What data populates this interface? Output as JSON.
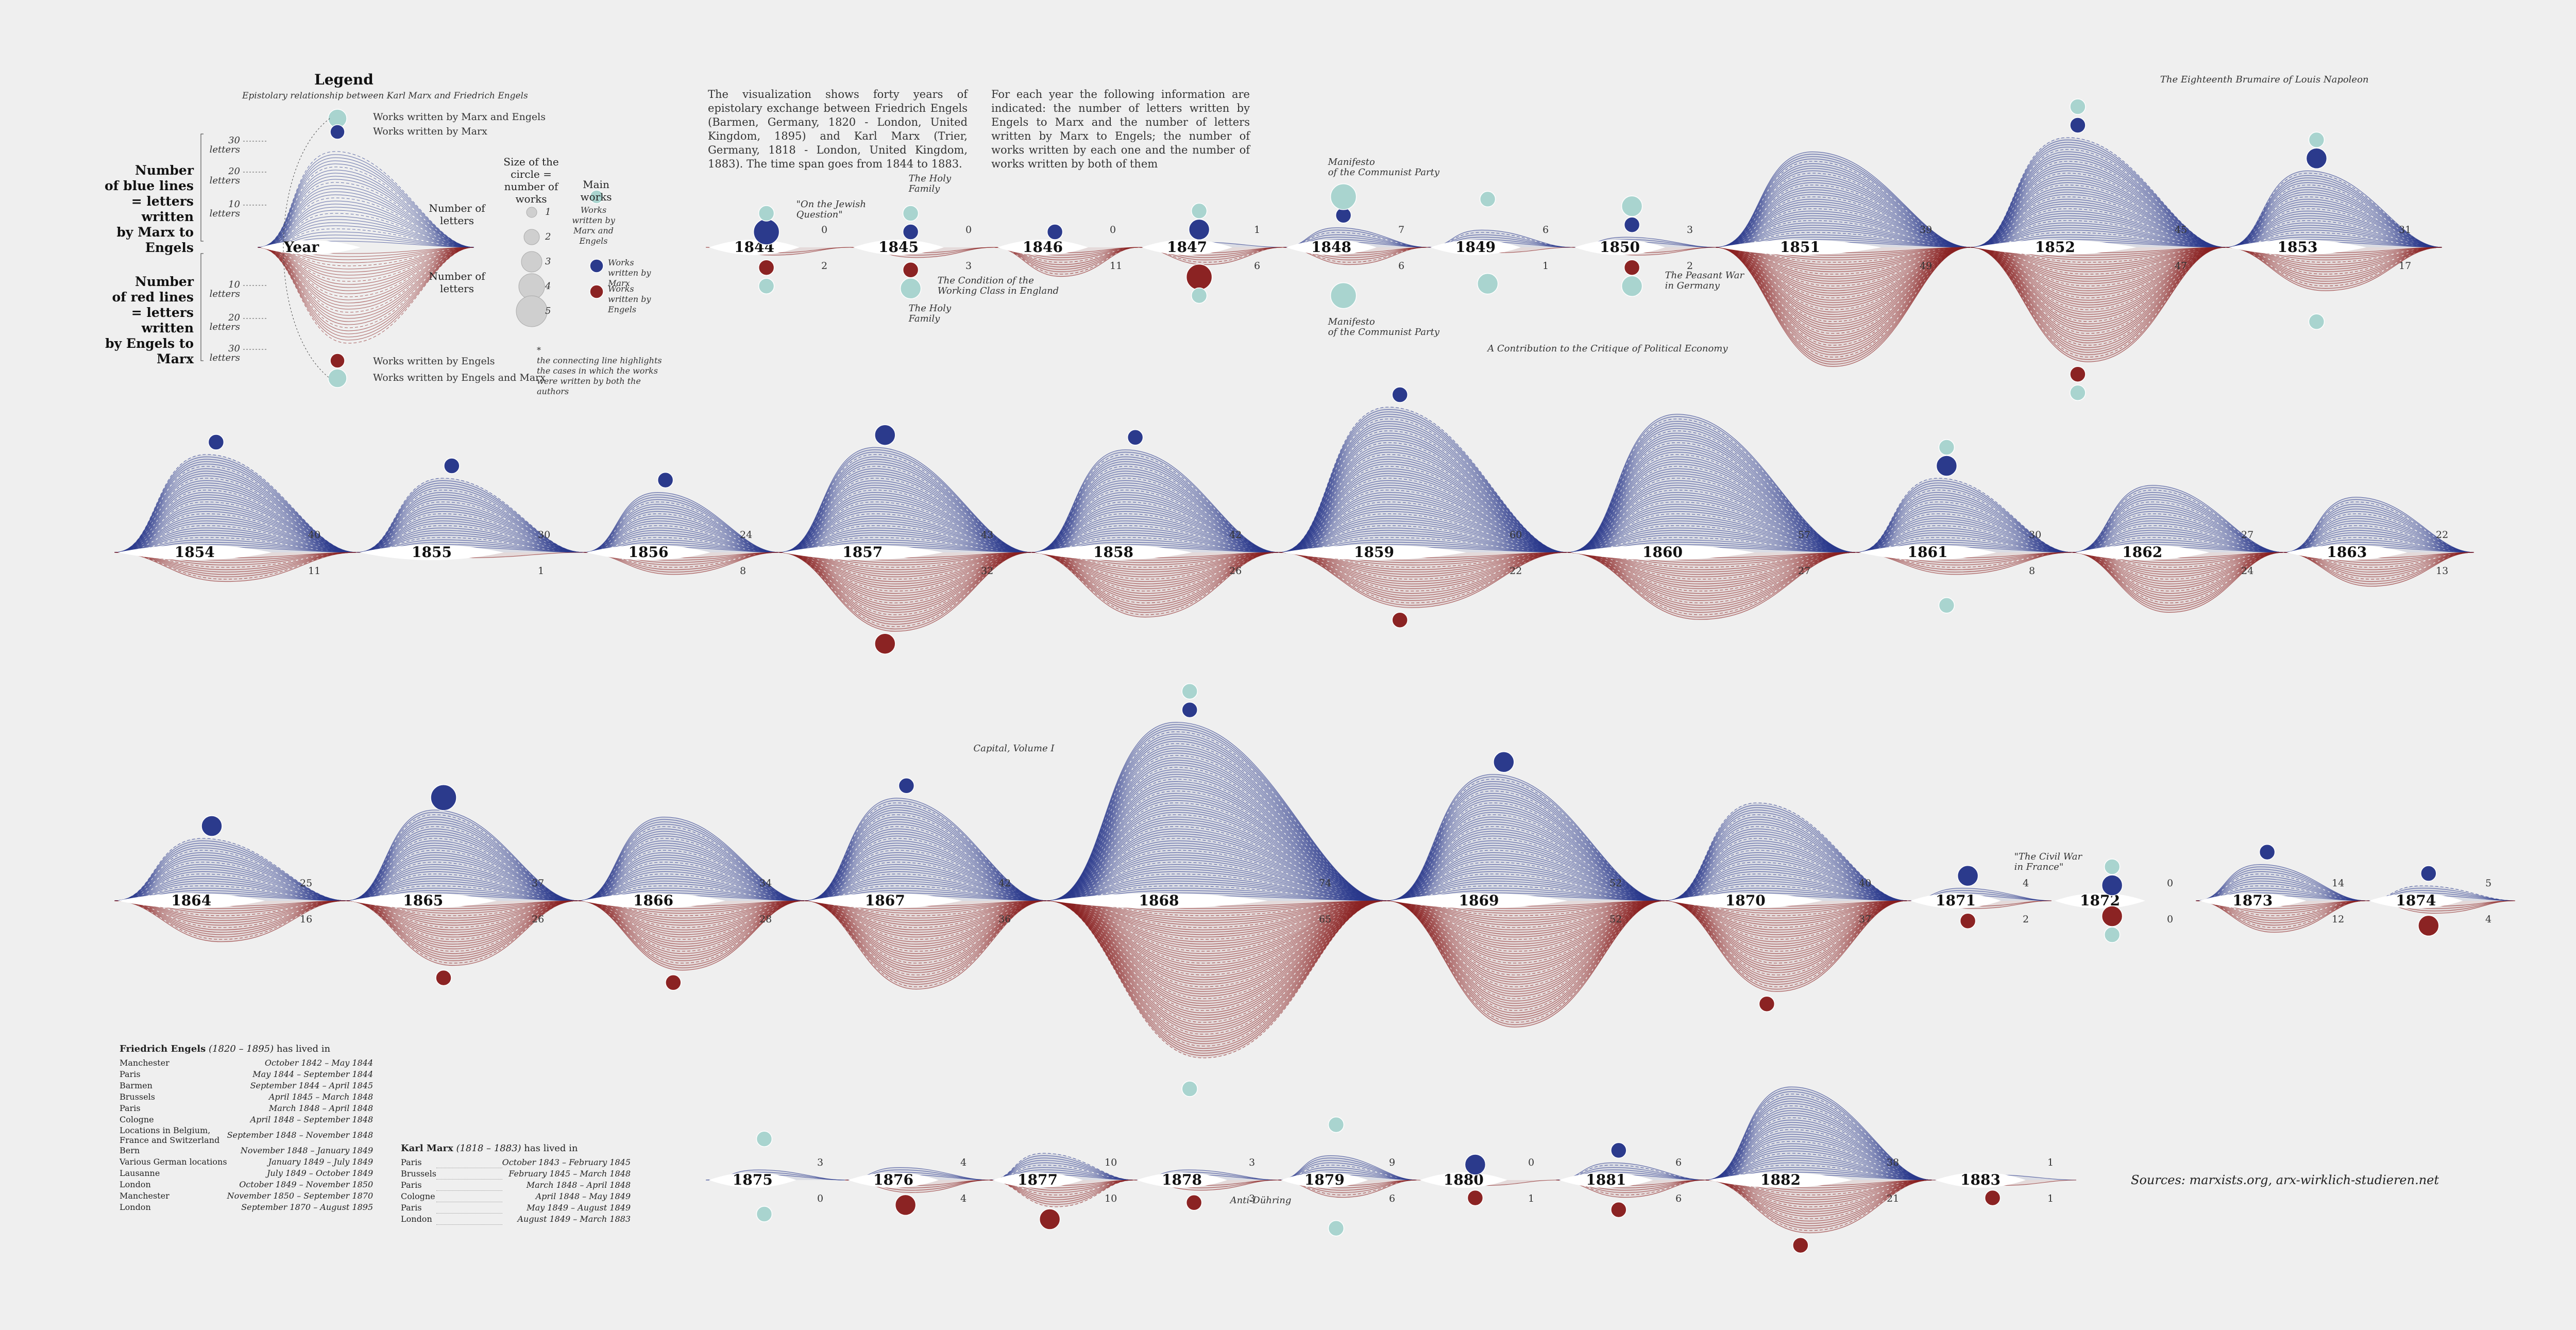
{
  "legend": {
    "title": "Legend",
    "subtitle": "Epistolary relationship between Karl Marx and Friedrich Engels",
    "blue_label": [
      "Number",
      "of blue lines",
      "= letters written",
      "by Marx to Engels"
    ],
    "red_label": [
      "Number",
      "of red lines",
      "= letters written",
      "by Engels to Marx"
    ],
    "year_label": "Year",
    "number_letters_top": "Number of letters",
    "number_letters_bottom": "Number of letters",
    "ticks": [
      "30 letters",
      "20 letters",
      "10 letters",
      "10 letters",
      "20 letters",
      "30 letters"
    ],
    "works_both_top": "Works written by Marx and Engels",
    "works_marx": "Works written by Marx",
    "works_engels": "Works written by Engels",
    "works_both_bottom": "Works written by Engels and Marx",
    "size_label": "Size of the circle = number of works",
    "main_works_label": "Main works",
    "mw_both": "Works written by Marx and Engels",
    "mw_marx": "Works written by Marx",
    "mw_engels": "Works written by Engels",
    "sizes": [
      "1",
      "2",
      "3",
      "4",
      "5"
    ],
    "connecting_note": "the connecting line highlights the cases in which the works were written by both the authors",
    "star": "*"
  },
  "intro": {
    "left": "The visualization shows forty years of epistolary exchange between Friedrich Engels (Barmen, Germany, 1820 - London, United Kingdom, 1895) and Karl Marx (Trier, Germany, 1818 - London, United Kingdom, 1883). The time span goes from 1844 to 1883.",
    "right": "For each year the following information are indicated: the number of letters written by Engels to Marx and the number of letters written by Marx to Engels; the number of works written by each one and the number of works written by both of them"
  },
  "sources": "Sources: marxists.org, arx-wirklich-studieren.net",
  "engels_residence": {
    "name": "Friedrich Engels",
    "dates": "(1820 – 1895)",
    "suffix": "has lived in",
    "rows": [
      [
        "Manchester",
        "October 1842 – May 1844"
      ],
      [
        "Paris",
        "May 1844 – September 1844"
      ],
      [
        "Barmen",
        "September 1844 – April 1845"
      ],
      [
        "Brussels",
        "April 1845 – March 1848"
      ],
      [
        "Paris",
        "March 1848 – April 1848"
      ],
      [
        "Cologne",
        "April 1848 – September 1848"
      ],
      [
        "Locations in Belgium, France and Switzerland",
        "September 1848 – November 1848"
      ],
      [
        "Bern",
        "November 1848 – January 1849"
      ],
      [
        "Various German locations",
        "January 1849 – July 1849"
      ],
      [
        "Lausanne",
        "July 1849 – October 1849"
      ],
      [
        "London",
        "October 1849 – November 1850"
      ],
      [
        "Manchester",
        "November 1850 – September 1870"
      ],
      [
        "London",
        "September 1870 – August 1895"
      ]
    ]
  },
  "marx_residence": {
    "name": "Karl Marx",
    "dates": "(1818 – 1883)",
    "suffix": "has lived in",
    "rows": [
      [
        "Paris",
        "October 1843 – February 1845"
      ],
      [
        "Brussels",
        "February 1845 – March 1848"
      ],
      [
        "Paris",
        "March 1848 – April 1848"
      ],
      [
        "Cologne",
        "April 1848 – May 1849"
      ],
      [
        "Paris",
        "May 1849 – August 1849"
      ],
      [
        "London",
        "August 1849 – March 1883"
      ]
    ]
  },
  "colors": {
    "marx": "#2b3a8c",
    "engels": "#8b2323",
    "both": "#a9d4cf",
    "bg": "#efefef"
  },
  "annotations": [
    {
      "year": 1844,
      "text": [
        "\"On the Jewish",
        "Question\""
      ]
    },
    {
      "year": 1845,
      "text": [
        "The Holy",
        "Family"
      ]
    },
    {
      "year": 1845,
      "text": [
        "The Condition of the",
        "Working Class in England"
      ]
    },
    {
      "year": 1845,
      "text": [
        "The Holy",
        "Family"
      ]
    },
    {
      "year": 1848,
      "text": [
        "Manifesto",
        "of the Communist Party"
      ]
    },
    {
      "year": 1848,
      "text": [
        "Manifesto",
        "of the Communist Party"
      ]
    },
    {
      "year": 1850,
      "text": [
        "The Peasant War",
        "in Germany"
      ]
    },
    {
      "year": 1852,
      "text": [
        "The Eighteenth Brumaire of Louis Napoleon"
      ]
    },
    {
      "year": 1859,
      "text": [
        "A Contribution to the Critique of Political Economy"
      ]
    },
    {
      "year": 1867,
      "text": [
        "Capital, Volume I"
      ]
    },
    {
      "year": 1871,
      "text": [
        "\"The Civil War",
        "in France\""
      ]
    },
    {
      "year": 1878,
      "text": [
        "Anti-Dühring"
      ]
    }
  ],
  "chart_data": {
    "type": "area",
    "title": "",
    "xlabel": "",
    "ylabel": "",
    "series": [
      {
        "name": "Letters written by Marx to Engels (blue lines)",
        "years": [
          1844,
          1845,
          1846,
          1847,
          1848,
          1849,
          1850,
          1851,
          1852,
          1853,
          1854,
          1855,
          1856,
          1857,
          1858,
          1859,
          1860,
          1861,
          1862,
          1863,
          1864,
          1865,
          1866,
          1867,
          1868,
          1869,
          1870,
          1871,
          1872,
          1873,
          1874,
          1875,
          1876,
          1877,
          1878,
          1879,
          1880,
          1881,
          1882,
          1883
        ],
        "values": [
          0,
          0,
          0,
          1,
          7,
          6,
          3,
          39,
          45,
          31,
          40,
          30,
          24,
          43,
          42,
          60,
          57,
          30,
          27,
          22,
          25,
          37,
          34,
          42,
          74,
          52,
          40,
          4,
          0,
          14,
          5,
          3,
          4,
          10,
          3,
          9,
          0,
          6,
          38,
          1
        ]
      },
      {
        "name": "Letters written by Engels to Marx (red lines)",
        "years": [
          1844,
          1845,
          1846,
          1847,
          1848,
          1849,
          1850,
          1851,
          1852,
          1853,
          1854,
          1855,
          1856,
          1857,
          1858,
          1859,
          1860,
          1861,
          1862,
          1863,
          1864,
          1865,
          1866,
          1867,
          1868,
          1869,
          1870,
          1871,
          1872,
          1873,
          1874,
          1875,
          1876,
          1877,
          1878,
          1879,
          1880,
          1881,
          1882,
          1883
        ],
        "values": [
          2,
          3,
          11,
          6,
          6,
          1,
          2,
          49,
          47,
          17,
          11,
          1,
          8,
          32,
          26,
          22,
          27,
          8,
          24,
          13,
          16,
          26,
          28,
          36,
          65,
          52,
          37,
          2,
          0,
          12,
          4,
          0,
          4,
          10,
          3,
          6,
          1,
          6,
          21,
          1
        ]
      },
      {
        "name": "Works written by Marx",
        "years": [
          1844,
          1845,
          1846,
          1847,
          1848,
          1849,
          1850,
          1852,
          1853,
          1854,
          1855,
          1856,
          1857,
          1858,
          1859,
          1861,
          1864,
          1865,
          1867,
          1868,
          1869,
          1871,
          1872,
          1873,
          1874,
          1880,
          1881
        ],
        "values": [
          3,
          1,
          1,
          2,
          1,
          0,
          1,
          1,
          2,
          1,
          1,
          1,
          2,
          1,
          1,
          2,
          2,
          3,
          1,
          1,
          2,
          2,
          2,
          1,
          1,
          2,
          1
        ]
      },
      {
        "name": "Works written by Engels",
        "years": [
          1844,
          1845,
          1847,
          1850,
          1852,
          1857,
          1859,
          1865,
          1866,
          1870,
          1871,
          1872,
          1874,
          1876,
          1877,
          1878,
          1880,
          1881,
          1882,
          1883
        ],
        "values": [
          1,
          1,
          3,
          1,
          1,
          2,
          1,
          1,
          1,
          1,
          1,
          2,
          2,
          2,
          2,
          1,
          1,
          1,
          1,
          1
        ]
      },
      {
        "name": "Works written by Marx and Engels",
        "years": [
          1844,
          1845,
          1847,
          1848,
          1849,
          1850,
          1852,
          1853,
          1861,
          1868,
          1872,
          1875,
          1879
        ],
        "values": [
          1,
          1,
          1,
          3,
          1,
          2,
          1,
          1,
          1,
          1,
          1,
          1,
          1
        ]
      },
      {
        "name": "Works written by Engels and Marx",
        "years": [
          1844,
          1845,
          1847,
          1848,
          1849,
          1850,
          1852,
          1853,
          1861,
          1868,
          1872,
          1875,
          1879
        ],
        "values": [
          1,
          2,
          1,
          3,
          2,
          2,
          1,
          1,
          1,
          1,
          1,
          1,
          1
        ]
      }
    ]
  }
}
